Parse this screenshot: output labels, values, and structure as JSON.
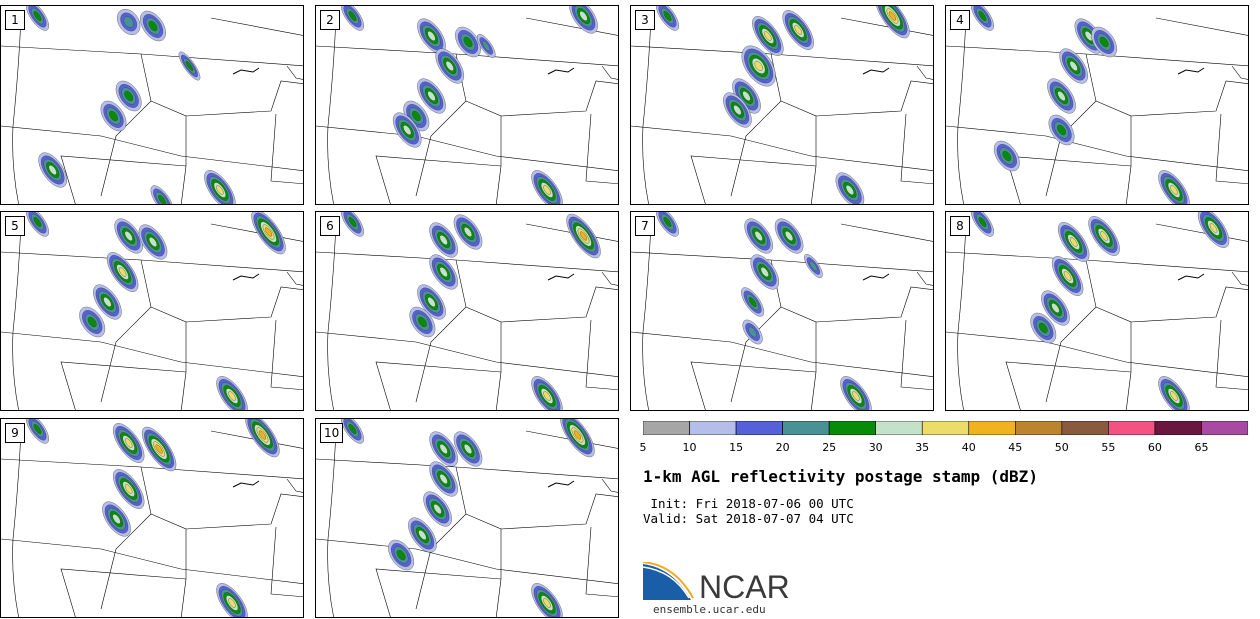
{
  "panels": [
    {
      "label": "1",
      "blobs": [
        [
          0.12,
          0.05,
          1,
          3
        ],
        [
          0.42,
          0.08,
          2,
          2
        ],
        [
          0.5,
          0.1,
          2,
          3
        ],
        [
          0.62,
          0.3,
          0.4,
          3
        ],
        [
          0.42,
          0.45,
          2,
          3
        ],
        [
          0.37,
          0.55,
          2,
          3
        ],
        [
          0.17,
          0.82,
          2,
          4
        ],
        [
          0.72,
          0.92,
          2,
          5
        ],
        [
          0.53,
          0.97,
          1,
          3
        ]
      ]
    },
    {
      "label": "2",
      "blobs": [
        [
          0.12,
          0.05,
          1,
          3
        ],
        [
          0.38,
          0.15,
          2,
          4
        ],
        [
          0.5,
          0.18,
          2,
          3
        ],
        [
          0.44,
          0.3,
          2,
          4
        ],
        [
          0.38,
          0.45,
          2,
          4
        ],
        [
          0.33,
          0.55,
          2,
          3
        ],
        [
          0.3,
          0.62,
          2,
          4
        ],
        [
          0.76,
          0.92,
          2,
          5
        ],
        [
          0.88,
          0.05,
          2,
          4
        ],
        [
          0.56,
          0.2,
          0.4,
          2
        ]
      ]
    },
    {
      "label": "3",
      "blobs": [
        [
          0.12,
          0.05,
          1,
          3
        ],
        [
          0.45,
          0.15,
          2,
          5
        ],
        [
          0.55,
          0.12,
          2,
          5
        ],
        [
          0.42,
          0.3,
          3,
          5
        ],
        [
          0.38,
          0.45,
          2,
          4
        ],
        [
          0.35,
          0.52,
          2,
          4
        ],
        [
          0.86,
          0.05,
          2,
          6
        ],
        [
          0.72,
          0.92,
          2,
          4
        ]
      ]
    },
    {
      "label": "4",
      "blobs": [
        [
          0.12,
          0.05,
          1,
          3
        ],
        [
          0.47,
          0.15,
          2,
          4
        ],
        [
          0.52,
          0.18,
          2,
          3
        ],
        [
          0.42,
          0.3,
          2,
          4
        ],
        [
          0.38,
          0.45,
          2,
          4
        ],
        [
          0.2,
          0.75,
          2,
          3
        ],
        [
          0.75,
          0.92,
          2,
          5
        ],
        [
          0.38,
          0.62,
          2,
          3
        ]
      ]
    },
    {
      "label": "5",
      "blobs": [
        [
          0.12,
          0.05,
          1,
          3
        ],
        [
          0.42,
          0.12,
          2,
          4
        ],
        [
          0.5,
          0.15,
          2,
          4
        ],
        [
          0.4,
          0.3,
          2,
          5
        ],
        [
          0.35,
          0.45,
          2,
          4
        ],
        [
          0.3,
          0.55,
          2,
          3
        ],
        [
          0.88,
          0.1,
          2,
          6
        ],
        [
          0.76,
          0.92,
          2,
          5
        ]
      ]
    },
    {
      "label": "6",
      "blobs": [
        [
          0.12,
          0.05,
          1,
          3
        ],
        [
          0.42,
          0.14,
          2,
          4
        ],
        [
          0.5,
          0.1,
          2,
          4
        ],
        [
          0.42,
          0.3,
          2,
          4
        ],
        [
          0.38,
          0.45,
          2,
          4
        ],
        [
          0.35,
          0.55,
          2,
          3
        ],
        [
          0.88,
          0.12,
          2,
          6
        ],
        [
          0.76,
          0.92,
          2,
          5
        ]
      ]
    },
    {
      "label": "7",
      "blobs": [
        [
          0.12,
          0.05,
          1,
          3
        ],
        [
          0.42,
          0.12,
          2,
          4
        ],
        [
          0.52,
          0.12,
          2,
          4
        ],
        [
          0.44,
          0.3,
          2,
          4
        ],
        [
          0.4,
          0.45,
          1,
          3
        ],
        [
          0.6,
          0.27,
          0.4,
          2
        ],
        [
          0.74,
          0.92,
          2,
          5
        ],
        [
          0.4,
          0.6,
          1,
          2
        ]
      ]
    },
    {
      "label": "8",
      "blobs": [
        [
          0.12,
          0.05,
          1,
          3
        ],
        [
          0.42,
          0.15,
          2,
          5
        ],
        [
          0.52,
          0.12,
          2,
          5
        ],
        [
          0.4,
          0.32,
          2,
          5
        ],
        [
          0.36,
          0.48,
          2,
          4
        ],
        [
          0.32,
          0.58,
          2,
          3
        ],
        [
          0.88,
          0.08,
          2,
          5
        ],
        [
          0.75,
          0.92,
          2,
          5
        ]
      ]
    },
    {
      "label": "9",
      "blobs": [
        [
          0.12,
          0.05,
          1,
          3
        ],
        [
          0.42,
          0.12,
          2,
          5
        ],
        [
          0.52,
          0.15,
          2,
          6
        ],
        [
          0.42,
          0.35,
          2,
          5
        ],
        [
          0.38,
          0.5,
          2,
          4
        ],
        [
          0.86,
          0.08,
          2,
          6
        ],
        [
          0.76,
          0.92,
          2,
          5
        ]
      ]
    },
    {
      "label": "10",
      "blobs": [
        [
          0.12,
          0.05,
          1,
          3
        ],
        [
          0.42,
          0.15,
          2,
          4
        ],
        [
          0.5,
          0.15,
          2,
          4
        ],
        [
          0.42,
          0.3,
          2,
          4
        ],
        [
          0.4,
          0.45,
          2,
          4
        ],
        [
          0.35,
          0.58,
          2,
          4
        ],
        [
          0.28,
          0.68,
          2,
          3
        ],
        [
          0.86,
          0.08,
          2,
          6
        ],
        [
          0.76,
          0.92,
          2,
          5
        ]
      ]
    }
  ],
  "colorbar": {
    "colors": [
      "#a6a6a6",
      "#b4bee9",
      "#5660d8",
      "#4a9196",
      "#078b08",
      "#c3e2c7",
      "#ecdc6a",
      "#f0b21f",
      "#bd8430",
      "#8b593e",
      "#f35283",
      "#6a1640",
      "#a84aa4"
    ],
    "ticks": [
      "5",
      "10",
      "15",
      "20",
      "25",
      "30",
      "35",
      "40",
      "45",
      "50",
      "55",
      "60",
      "65"
    ]
  },
  "title": "1-km AGL reflectivity postage stamp (dBZ)",
  "init_line": " Init: Fri 2018-07-06 00 UTC",
  "valid_line": "Valid: Sat 2018-07-07 04 UTC",
  "logo": {
    "text": "NCAR",
    "url": "ensemble.ucar.edu"
  }
}
